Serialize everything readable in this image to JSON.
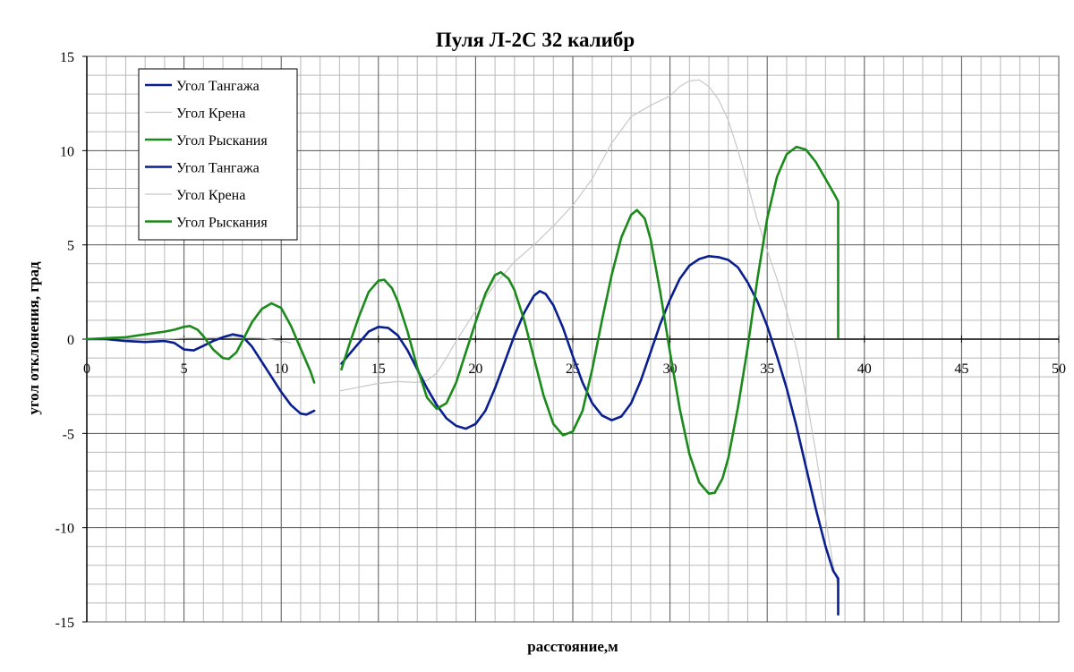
{
  "chart_data": {
    "type": "line",
    "title": "Пуля Л-2С 32 калибр",
    "xlabel": "расстояние,м",
    "ylabel": "угол отклонения, град",
    "xlim": [
      0,
      50
    ],
    "ylim": [
      -15,
      15
    ],
    "x_ticks": [
      0,
      5,
      10,
      15,
      20,
      25,
      30,
      35,
      40,
      45,
      50
    ],
    "y_ticks": [
      15,
      10,
      5,
      0,
      -5,
      -10,
      -15
    ],
    "grid": true,
    "legend_position": "top-left",
    "series": [
      {
        "name": "Угол Тангажа",
        "color": "#0a1f8f",
        "segments": [
          [
            [
              0,
              0
            ],
            [
              1,
              0
            ],
            [
              2,
              -0.1
            ],
            [
              3,
              -0.15
            ],
            [
              4,
              -0.1
            ],
            [
              4.5,
              -0.2
            ],
            [
              5,
              -0.55
            ],
            [
              5.5,
              -0.6
            ],
            [
              6,
              -0.35
            ],
            [
              6.5,
              -0.1
            ],
            [
              7,
              0.1
            ],
            [
              7.5,
              0.25
            ],
            [
              8,
              0.15
            ],
            [
              8.5,
              -0.4
            ],
            [
              9,
              -1.2
            ],
            [
              9.5,
              -2.0
            ],
            [
              10,
              -2.8
            ],
            [
              10.5,
              -3.5
            ],
            [
              11,
              -3.95
            ],
            [
              11.3,
              -4.0
            ],
            [
              11.6,
              -3.85
            ],
            [
              11.7,
              -3.8
            ]
          ],
          [
            [
              13.1,
              -1.3
            ],
            [
              13.5,
              -0.8
            ],
            [
              14,
              -0.2
            ],
            [
              14.5,
              0.4
            ],
            [
              15,
              0.65
            ],
            [
              15.5,
              0.6
            ],
            [
              16,
              0.2
            ],
            [
              16.5,
              -0.6
            ],
            [
              17,
              -1.6
            ],
            [
              17.5,
              -2.6
            ],
            [
              18,
              -3.5
            ],
            [
              18.5,
              -4.2
            ],
            [
              19,
              -4.6
            ],
            [
              19.5,
              -4.75
            ],
            [
              20,
              -4.5
            ],
            [
              20.5,
              -3.8
            ],
            [
              21,
              -2.6
            ],
            [
              21.5,
              -1.2
            ],
            [
              22,
              0.2
            ],
            [
              22.5,
              1.4
            ],
            [
              23,
              2.3
            ],
            [
              23.3,
              2.55
            ],
            [
              23.6,
              2.4
            ],
            [
              24,
              1.8
            ],
            [
              24.5,
              0.6
            ],
            [
              25,
              -0.9
            ],
            [
              25.5,
              -2.3
            ],
            [
              26,
              -3.4
            ],
            [
              26.5,
              -4.05
            ],
            [
              27,
              -4.3
            ],
            [
              27.5,
              -4.1
            ],
            [
              28,
              -3.4
            ],
            [
              28.5,
              -2.2
            ],
            [
              29,
              -0.7
            ],
            [
              29.5,
              0.8
            ],
            [
              30,
              2.1
            ],
            [
              30.5,
              3.2
            ],
            [
              31,
              3.9
            ],
            [
              31.5,
              4.25
            ],
            [
              32,
              4.4
            ],
            [
              32.5,
              4.35
            ],
            [
              33,
              4.2
            ],
            [
              33.5,
              3.8
            ],
            [
              34,
              3.0
            ],
            [
              34.5,
              2.0
            ],
            [
              35,
              0.7
            ],
            [
              35.5,
              -0.9
            ],
            [
              36,
              -2.6
            ],
            [
              36.5,
              -4.6
            ],
            [
              37,
              -6.8
            ],
            [
              37.5,
              -9.0
            ],
            [
              38,
              -11.0
            ],
            [
              38.4,
              -12.3
            ],
            [
              38.65,
              -12.7
            ],
            [
              38.65,
              -14.6
            ]
          ]
        ]
      },
      {
        "name": "Угол Крена",
        "color": "#c8c8c8",
        "segments": [
          [
            [
              0,
              0
            ],
            [
              1,
              0
            ],
            [
              2,
              0
            ],
            [
              3,
              0
            ],
            [
              4,
              0
            ],
            [
              5,
              0.05
            ],
            [
              6,
              0.05
            ],
            [
              7,
              0.1
            ],
            [
              8,
              0.1
            ],
            [
              9,
              0.05
            ],
            [
              10,
              -0.1
            ],
            [
              10.5,
              -0.2
            ]
          ],
          [
            [
              13,
              -2.75
            ],
            [
              14,
              -2.55
            ],
            [
              15,
              -2.35
            ],
            [
              16,
              -2.25
            ],
            [
              17,
              -2.3
            ],
            [
              17.5,
              -2.2
            ],
            [
              18,
              -1.8
            ],
            [
              18.5,
              -1.0
            ],
            [
              19,
              -0.1
            ],
            [
              20,
              1.5
            ],
            [
              21,
              2.9
            ],
            [
              22,
              4.1
            ],
            [
              23,
              5.0
            ],
            [
              24,
              6.0
            ],
            [
              25,
              7.1
            ],
            [
              26,
              8.5
            ],
            [
              27,
              10.4
            ],
            [
              28,
              11.8
            ],
            [
              29,
              12.4
            ],
            [
              30,
              12.9
            ],
            [
              30.5,
              13.4
            ],
            [
              31,
              13.7
            ],
            [
              31.5,
              13.75
            ],
            [
              32,
              13.4
            ],
            [
              32.5,
              12.7
            ],
            [
              33,
              11.6
            ],
            [
              33.5,
              10.0
            ],
            [
              34,
              8.2
            ],
            [
              34.5,
              6.3
            ],
            [
              35,
              4.7
            ],
            [
              35.5,
              3.2
            ],
            [
              36,
              1.5
            ],
            [
              36.5,
              -0.5
            ],
            [
              37,
              -3.0
            ],
            [
              37.5,
              -6.0
            ],
            [
              38,
              -9.5
            ],
            [
              38.4,
              -12.0
            ],
            [
              38.6,
              -12.9
            ]
          ]
        ]
      },
      {
        "name": "Угол Рыскания",
        "color": "#1a8a1a",
        "segments": [
          [
            [
              0,
              0
            ],
            [
              1,
              0.05
            ],
            [
              2,
              0.1
            ],
            [
              3,
              0.25
            ],
            [
              4,
              0.4
            ],
            [
              4.5,
              0.5
            ],
            [
              5,
              0.65
            ],
            [
              5.3,
              0.7
            ],
            [
              5.7,
              0.5
            ],
            [
              6,
              0.15
            ],
            [
              6.5,
              -0.55
            ],
            [
              7,
              -1.0
            ],
            [
              7.3,
              -1.05
            ],
            [
              7.7,
              -0.7
            ],
            [
              8,
              -0.1
            ],
            [
              8.5,
              0.9
            ],
            [
              9,
              1.6
            ],
            [
              9.5,
              1.9
            ],
            [
              10,
              1.65
            ],
            [
              10.5,
              0.7
            ],
            [
              11,
              -0.5
            ],
            [
              11.5,
              -1.7
            ],
            [
              11.7,
              -2.3
            ]
          ],
          [
            [
              13.1,
              -1.6
            ],
            [
              13.5,
              -0.3
            ],
            [
              14,
              1.2
            ],
            [
              14.5,
              2.5
            ],
            [
              15,
              3.1
            ],
            [
              15.3,
              3.15
            ],
            [
              15.7,
              2.7
            ],
            [
              16,
              2.0
            ],
            [
              16.5,
              0.4
            ],
            [
              17,
              -1.5
            ],
            [
              17.5,
              -3.1
            ],
            [
              18,
              -3.7
            ],
            [
              18.5,
              -3.4
            ],
            [
              19,
              -2.3
            ],
            [
              19.5,
              -0.7
            ],
            [
              20,
              0.9
            ],
            [
              20.5,
              2.4
            ],
            [
              21,
              3.4
            ],
            [
              21.3,
              3.55
            ],
            [
              21.7,
              3.2
            ],
            [
              22,
              2.6
            ],
            [
              22.5,
              1.0
            ],
            [
              23,
              -1.0
            ],
            [
              23.5,
              -3.0
            ],
            [
              24,
              -4.5
            ],
            [
              24.5,
              -5.1
            ],
            [
              25,
              -4.9
            ],
            [
              25.5,
              -3.8
            ],
            [
              26,
              -1.6
            ],
            [
              26.5,
              1.0
            ],
            [
              27,
              3.4
            ],
            [
              27.5,
              5.4
            ],
            [
              28,
              6.6
            ],
            [
              28.3,
              6.85
            ],
            [
              28.7,
              6.4
            ],
            [
              29,
              5.3
            ],
            [
              29.5,
              2.5
            ],
            [
              30,
              -0.7
            ],
            [
              30.5,
              -3.7
            ],
            [
              31,
              -6.1
            ],
            [
              31.5,
              -7.6
            ],
            [
              32,
              -8.2
            ],
            [
              32.3,
              -8.15
            ],
            [
              32.7,
              -7.4
            ],
            [
              33,
              -6.3
            ],
            [
              33.5,
              -3.6
            ],
            [
              34,
              -0.4
            ],
            [
              34.5,
              3.2
            ],
            [
              35,
              6.4
            ],
            [
              35.5,
              8.6
            ],
            [
              36,
              9.8
            ],
            [
              36.5,
              10.2
            ],
            [
              37,
              10.05
            ],
            [
              37.5,
              9.4
            ],
            [
              38,
              8.5
            ],
            [
              38.5,
              7.6
            ],
            [
              38.65,
              7.3
            ],
            [
              38.65,
              0.1
            ]
          ]
        ]
      }
    ],
    "legend_entries": [
      {
        "name": "Угол Тангажа",
        "color": "#0a1f8f"
      },
      {
        "name": "Угол Крена",
        "color": "#c8c8c8"
      },
      {
        "name": "Угол Рыскания",
        "color": "#1a8a1a"
      },
      {
        "name": "Угол Тангажа",
        "color": "#0a1f8f"
      },
      {
        "name": "Угол Крена",
        "color": "#c8c8c8"
      },
      {
        "name": "Угол Рыскания",
        "color": "#1a8a1a"
      }
    ]
  }
}
